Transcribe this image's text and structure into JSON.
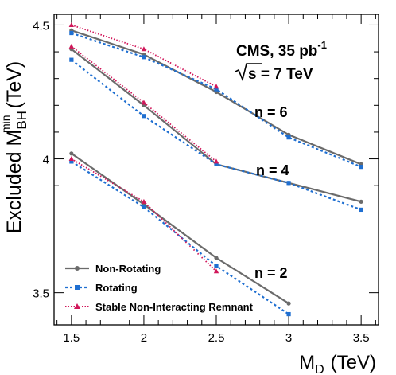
{
  "chart_data": {
    "type": "line",
    "xlabel_main": "M",
    "xlabel_sub": "D",
    "xlabel_unit": "(TeV)",
    "ylabel_main": "Excluded M",
    "ylabel_sup": "min",
    "ylabel_sub": "BH",
    "ylabel_unit": "(TeV)",
    "xlim": [
      1.38,
      3.62
    ],
    "ylim": [
      3.38,
      4.54
    ],
    "xticks": [
      1.5,
      2,
      2.5,
      3,
      3.5
    ],
    "xtick_labels": [
      "1.5",
      "2",
      "2.5",
      "3",
      "3.5"
    ],
    "yticks": [
      3.5,
      4,
      4.5
    ],
    "ytick_labels": [
      "3.5",
      "4",
      "4.5"
    ],
    "annotations": {
      "experiment": "CMS, 35 pb",
      "experiment_sup": "-1",
      "energy": "s = 7 TeV",
      "n6": "n = 6",
      "n4": "n = 4",
      "n2": "n = 2"
    },
    "legend": {
      "placement": "bottom-left",
      "entries": [
        "Non-Rotating",
        "Rotating",
        "Stable Non-Interacting Remnant"
      ]
    },
    "colors": {
      "non_rotating": "#6b6b6b",
      "rotating": "#1f6fd1",
      "stable": "#d1175a"
    },
    "series": [
      {
        "name": "Non-Rotating",
        "group": "n = 6",
        "x": [
          1.5,
          2,
          2.5,
          3,
          3.5
        ],
        "y": [
          4.48,
          4.39,
          4.25,
          4.09,
          3.98
        ]
      },
      {
        "name": "Rotating",
        "group": "n = 6",
        "x": [
          1.5,
          2,
          2.5,
          3,
          3.5
        ],
        "y": [
          4.47,
          4.38,
          4.26,
          4.08,
          3.97
        ]
      },
      {
        "name": "Stable Non-Interacting Remnant",
        "group": "n = 6",
        "x": [
          1.5,
          2,
          2.5
        ],
        "y": [
          4.5,
          4.41,
          4.27
        ]
      },
      {
        "name": "Non-Rotating",
        "group": "n = 4",
        "x": [
          1.5,
          2,
          2.5,
          3,
          3.5
        ],
        "y": [
          4.41,
          4.2,
          3.98,
          3.91,
          3.84
        ]
      },
      {
        "name": "Rotating",
        "group": "n = 4",
        "x": [
          1.5,
          2,
          2.5,
          3,
          3.5
        ],
        "y": [
          4.37,
          4.16,
          3.98,
          3.91,
          3.81
        ]
      },
      {
        "name": "Stable Non-Interacting Remnant",
        "group": "n = 4",
        "x": [
          1.5,
          2,
          2.5
        ],
        "y": [
          4.42,
          4.21,
          3.99
        ]
      },
      {
        "name": "Non-Rotating",
        "group": "n = 2",
        "x": [
          1.5,
          2,
          2.5,
          3
        ],
        "y": [
          4.02,
          3.83,
          3.63,
          3.46
        ]
      },
      {
        "name": "Rotating",
        "group": "n = 2",
        "x": [
          1.5,
          2,
          2.5,
          3
        ],
        "y": [
          3.99,
          3.82,
          3.6,
          3.42
        ]
      },
      {
        "name": "Stable Non-Interacting Remnant",
        "group": "n = 2",
        "x": [
          1.5,
          2,
          2.5
        ],
        "y": [
          4.0,
          3.84,
          3.58
        ]
      }
    ]
  }
}
